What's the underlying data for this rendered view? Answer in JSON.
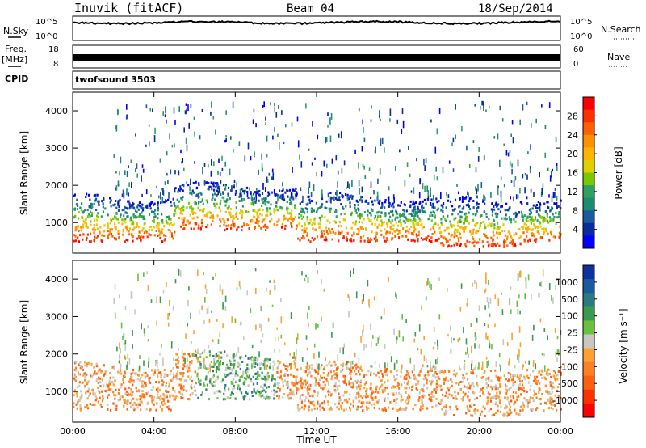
{
  "header": {
    "station": "Inuvik (fitACF)",
    "beam": "Beam 04",
    "date": "18/Sep/2014"
  },
  "panels": {
    "nsky_label": "N.Sky",
    "nsky_ticks": [
      "10^5",
      "10^0"
    ],
    "nsearch_label": "N.Search",
    "nsearch_ticks": [
      "10^5",
      "10^0"
    ],
    "freq_label": "Freq.",
    "freq_unit": "[MHz]",
    "freq_ticks": [
      "18",
      "8"
    ],
    "nave_label": "Nave",
    "nave_ticks": [
      "60",
      "0"
    ],
    "cpid_label": "CPID",
    "cpid_value": "twofsound 3503"
  },
  "chart_data": [
    {
      "type": "heatmap",
      "title": "",
      "quantity": "Power",
      "ylabel": "Slant Range [km]",
      "xlabel": "Time UT",
      "ylim": [
        180,
        4500
      ],
      "yticks": [
        1000,
        2000,
        3000,
        4000
      ],
      "xticks": [
        "00:00",
        "04:00",
        "08:00",
        "12:00",
        "16:00",
        "20:00",
        "00:00"
      ],
      "colorbar": {
        "label": "Power [dB]",
        "ticks": [
          "28",
          "24",
          "20",
          "16",
          "12",
          "8",
          "4"
        ],
        "colors": [
          "#ff0000",
          "#ff3000",
          "#ff6000",
          "#ff9000",
          "#ffb400",
          "#e0d000",
          "#7cc800",
          "#2fa060",
          "#1a8c70",
          "#1a5aa0",
          "#0a2aa0",
          "#0000ff"
        ]
      },
      "features": [
        {
          "name": "main echo band",
          "time_h": [
            0,
            24
          ],
          "range_km": [
            500,
            1700
          ]
        },
        {
          "name": "scattered upper echoes",
          "time_h": [
            2,
            24
          ],
          "range_km": [
            1700,
            4300
          ]
        }
      ]
    },
    {
      "type": "heatmap",
      "title": "",
      "quantity": "Velocity",
      "ylabel": "Slant Range [km]",
      "xlabel": "Time UT",
      "ylim": [
        180,
        4500
      ],
      "yticks": [
        1000,
        2000,
        3000,
        4000
      ],
      "xticks": [
        "00:00",
        "04:00",
        "08:00",
        "12:00",
        "16:00",
        "20:00",
        "00:00"
      ],
      "colorbar": {
        "label": "Velocity [m s⁻¹]",
        "ticks": [
          "1000",
          "500",
          "100",
          "25",
          "-25",
          "-100",
          "-500",
          "-1000"
        ],
        "colors": [
          "#1030a0",
          "#1a5aa0",
          "#2a7a80",
          "#3a9a50",
          "#6cc040",
          "#c8c8c0",
          "#ffa030",
          "#ff8020",
          "#ff6010",
          "#ff3000",
          "#ff0000"
        ]
      },
      "features": [
        {
          "name": "main echo band",
          "time_h": [
            0,
            24
          ],
          "range_km": [
            500,
            1700
          ]
        },
        {
          "name": "scattered upper echoes",
          "time_h": [
            2,
            24
          ],
          "range_km": [
            1700,
            4300
          ]
        }
      ]
    }
  ],
  "colors": {
    "frame": "#000000",
    "background": "#ffffff"
  }
}
